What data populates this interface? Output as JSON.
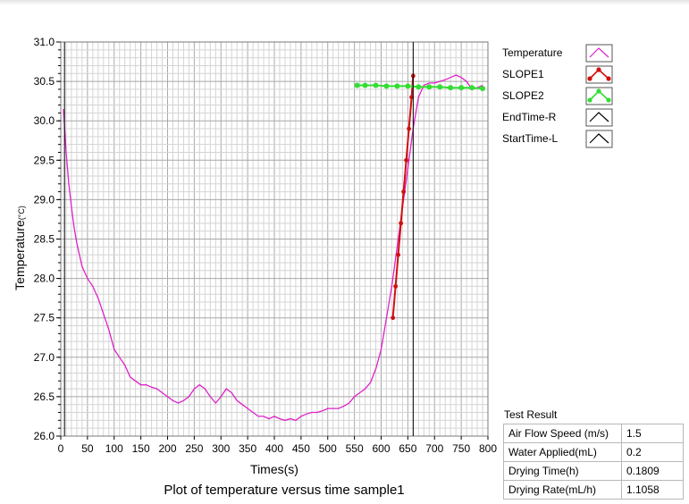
{
  "chart_data": {
    "type": "line",
    "title": "Plot of temperature versus time sample1",
    "xlabel": "Times(s)",
    "ylabel": "Temperature",
    "ylabel_unit": "(°C)",
    "xlim": [
      0,
      800
    ],
    "ylim": [
      26.0,
      31.0
    ],
    "x_ticks": [
      "0",
      "50",
      "100",
      "150",
      "200",
      "250",
      "300",
      "350",
      "400",
      "450",
      "500",
      "550",
      "600",
      "650",
      "700",
      "750",
      "800"
    ],
    "y_ticks": [
      "26.0",
      "26.5",
      "27.0",
      "27.5",
      "28.0",
      "28.5",
      "29.0",
      "29.5",
      "30.0",
      "30.5",
      "31.0"
    ],
    "grid": true,
    "legend_position": "right",
    "legend": [
      {
        "name": "Temperature",
        "color": "#e020c8"
      },
      {
        "name": "SLOPE1",
        "color": "#d01010"
      },
      {
        "name": "SLOPE2",
        "color": "#33dd33"
      },
      {
        "name": "EndTime-R",
        "color": "#000000"
      },
      {
        "name": "StartTime-L",
        "color": "#000000"
      }
    ],
    "series": [
      {
        "name": "Temperature",
        "color": "#e020c8",
        "x": [
          5,
          10,
          15,
          20,
          25,
          30,
          40,
          50,
          60,
          70,
          80,
          90,
          100,
          110,
          120,
          130,
          140,
          150,
          160,
          170,
          180,
          190,
          200,
          210,
          220,
          230,
          240,
          250,
          260,
          270,
          280,
          290,
          300,
          310,
          320,
          330,
          340,
          350,
          360,
          370,
          380,
          390,
          400,
          410,
          420,
          430,
          440,
          450,
          460,
          470,
          480,
          490,
          500,
          510,
          520,
          530,
          540,
          550,
          560,
          570,
          580,
          590,
          600,
          610,
          620,
          630,
          640,
          650,
          660,
          670,
          680,
          690,
          700,
          710,
          720,
          730,
          740,
          750,
          760,
          770,
          780,
          790
        ],
        "y": [
          30.15,
          29.6,
          29.2,
          28.9,
          28.65,
          28.45,
          28.15,
          28.0,
          27.9,
          27.75,
          27.55,
          27.35,
          27.1,
          27.0,
          26.9,
          26.75,
          26.7,
          26.65,
          26.65,
          26.62,
          26.6,
          26.55,
          26.5,
          26.45,
          26.42,
          26.45,
          26.5,
          26.6,
          26.65,
          26.6,
          26.5,
          26.42,
          26.5,
          26.6,
          26.55,
          26.45,
          26.4,
          26.35,
          26.3,
          26.25,
          26.25,
          26.22,
          26.25,
          26.22,
          26.2,
          26.22,
          26.2,
          26.25,
          26.28,
          26.3,
          26.3,
          26.32,
          26.35,
          26.35,
          26.35,
          26.38,
          26.42,
          26.5,
          26.55,
          26.6,
          26.68,
          26.85,
          27.1,
          27.5,
          27.9,
          28.4,
          28.9,
          29.4,
          29.9,
          30.3,
          30.45,
          30.48,
          30.48,
          30.5,
          30.52,
          30.55,
          30.58,
          30.55,
          30.5,
          30.4,
          30.42,
          30.45
        ]
      },
      {
        "name": "SLOPE1",
        "color": "#d01010",
        "marker": "circle",
        "x": [
          622,
          627,
          632,
          637,
          642,
          647,
          652,
          657,
          660
        ],
        "y": [
          27.5,
          27.9,
          28.3,
          28.7,
          29.1,
          29.5,
          29.9,
          30.3,
          30.57
        ]
      },
      {
        "name": "SLOPE2",
        "color": "#33dd33",
        "marker": "circle",
        "x": [
          555,
          570,
          590,
          610,
          630,
          650,
          670,
          690,
          710,
          730,
          750,
          770,
          790
        ],
        "y": [
          30.45,
          30.45,
          30.45,
          30.44,
          30.44,
          30.44,
          30.43,
          30.43,
          30.43,
          30.42,
          30.42,
          30.42,
          30.41
        ]
      },
      {
        "name": "StartTime-L",
        "color": "#000000",
        "vline_x": 7
      },
      {
        "name": "EndTime-R",
        "color": "#000000",
        "vline_x": 660
      }
    ]
  },
  "test_result": {
    "heading": "Test Result",
    "rows": [
      {
        "label": "Air Flow Speed (m/s)",
        "value": "1.5"
      },
      {
        "label": "Water Applied(mL)",
        "value": "0.2"
      },
      {
        "label": "Drying Time(h)",
        "value": "0.1809"
      },
      {
        "label": "Drying Rate(mL/h)",
        "value": "1.1058"
      }
    ]
  }
}
